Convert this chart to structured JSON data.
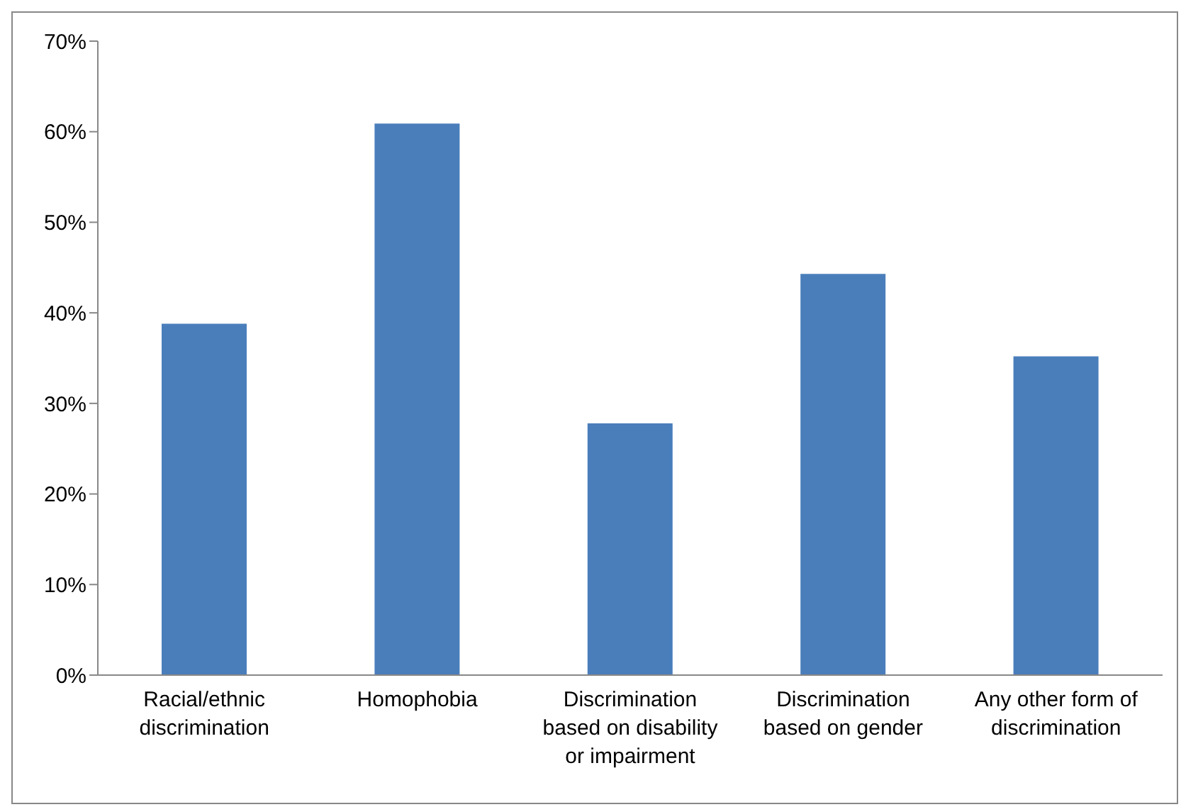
{
  "chart_data": {
    "type": "bar",
    "categories": [
      "Racial/ethnic discrimination",
      "Homophobia",
      "Discrimination based on disability or impairment",
      "Discrimination based on gender",
      "Any other form of discrimination"
    ],
    "values": [
      38.8,
      60.9,
      27.8,
      44.3,
      35.2
    ],
    "color": "#4a7ebb",
    "ylim": [
      0,
      70
    ],
    "yticks": [
      {
        "value": 0,
        "label": "0%"
      },
      {
        "value": 10,
        "label": "10%"
      },
      {
        "value": 20,
        "label": "20%"
      },
      {
        "value": 30,
        "label": "30%"
      },
      {
        "value": 40,
        "label": "40%"
      },
      {
        "value": 50,
        "label": "50%"
      },
      {
        "value": 60,
        "label": "60%"
      },
      {
        "value": 70,
        "label": "70%"
      }
    ],
    "grid": false,
    "legend": false
  }
}
